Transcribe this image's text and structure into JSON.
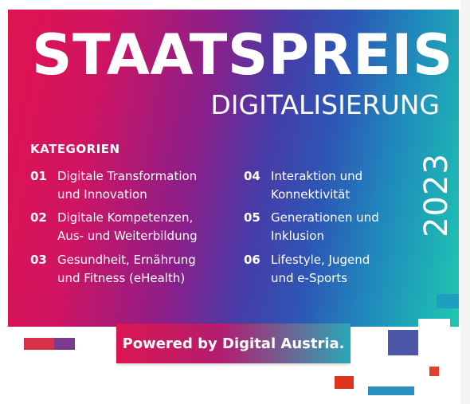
{
  "poster": {
    "title": "STAATSPREIS",
    "subtitle": "DIGITALISIERUNG",
    "categories_heading": "KATEGORIEN",
    "categories": [
      {
        "number": "01",
        "label": "Digitale Transformation\nund Innovation"
      },
      {
        "number": "02",
        "label": "Digitale Kompetenzen,\nAus- und Weiterbildung"
      },
      {
        "number": "03",
        "label": "Gesundheit, Ernährung\nund Fitness (eHealth)"
      },
      {
        "number": "04",
        "label": "Interaktion und\nKonnektivität"
      },
      {
        "number": "05",
        "label": "Generationen und\nInklusion"
      },
      {
        "number": "06",
        "label": "Lifestyle, Jugend\nund e-Sports"
      }
    ],
    "year": "2023",
    "powered_by": "Powered by Digital Austria."
  },
  "colors": {
    "gradient_start": "#e0134f",
    "gradient_mid": "#4a3aa6",
    "gradient_end": "#1ec8b0",
    "text": "#ffffff"
  }
}
